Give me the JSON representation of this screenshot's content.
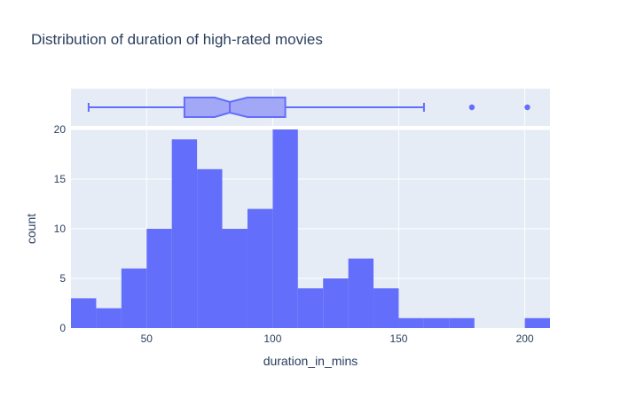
{
  "chart_data": {
    "type": "bar",
    "title": "Distribution of duration of high-rated movies",
    "xlabel": "duration_in_mins",
    "ylabel": "count",
    "bin_width": 10,
    "bin_starts": [
      20,
      30,
      40,
      50,
      60,
      70,
      80,
      90,
      100,
      110,
      120,
      130,
      140,
      150,
      160,
      170,
      180,
      190,
      200
    ],
    "values": [
      3,
      2,
      6,
      10,
      19,
      16,
      10,
      12,
      20,
      4,
      5,
      7,
      4,
      1,
      1,
      1,
      0,
      0,
      1
    ],
    "xlim": [
      20,
      210
    ],
    "ylim": [
      0,
      20
    ],
    "x_ticks": [
      50,
      100,
      150,
      200
    ],
    "y_ticks": [
      0,
      5,
      10,
      15,
      20
    ],
    "grid": true,
    "marginal_box": {
      "min": 27,
      "q1": 65,
      "median": 83,
      "notch_low": 77,
      "notch_high": 90,
      "q3": 105,
      "max": 160,
      "outliers": [
        179,
        201
      ]
    },
    "colors": {
      "bar": "#636efa",
      "plot_bg": "#e5ecf6",
      "grid": "#ffffff",
      "text": "#2a3f5f",
      "box_fill": "#a3a8f6"
    }
  }
}
